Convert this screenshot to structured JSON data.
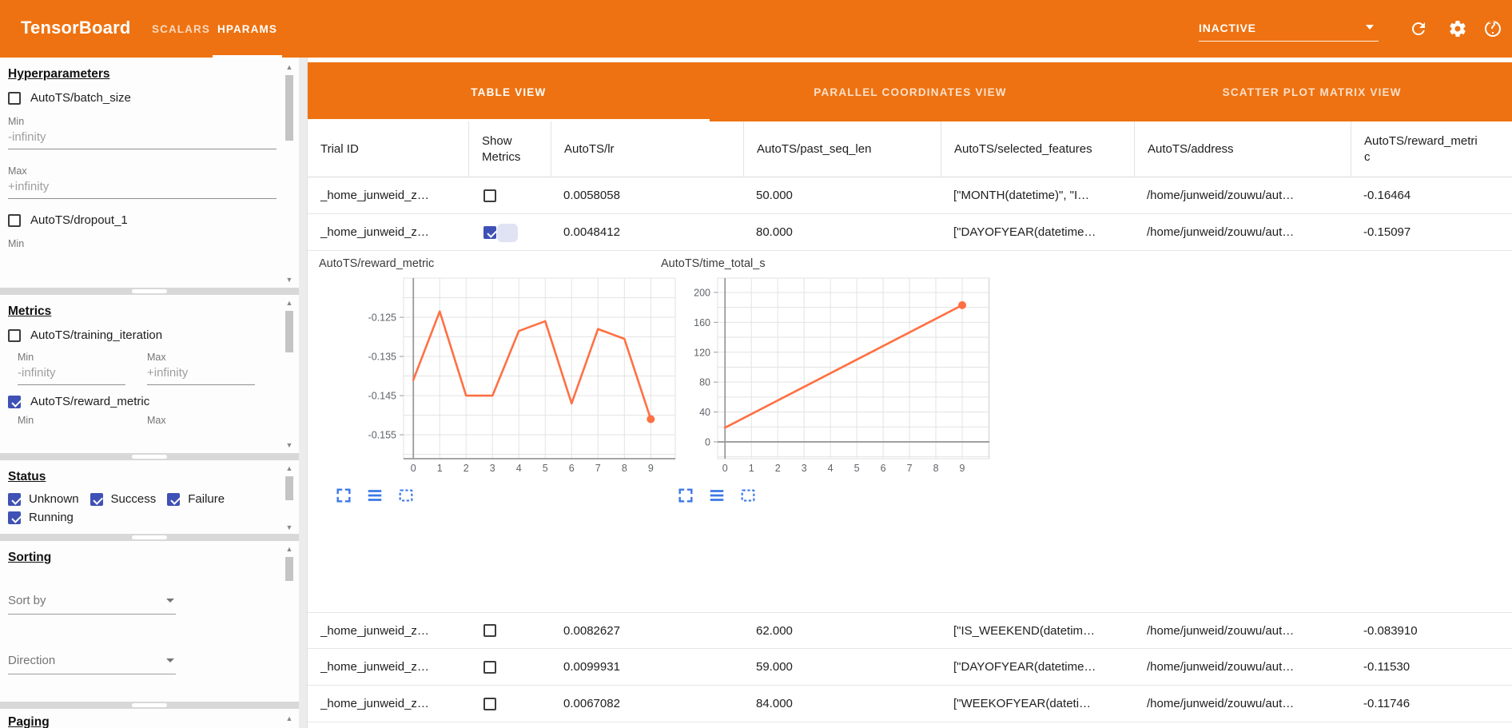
{
  "toolbar": {
    "title": "TensorBoard",
    "tabs": [
      {
        "label": "SCALARS",
        "active": false
      },
      {
        "label": "HPARAMS",
        "active": true
      }
    ],
    "run_selector": "INACTIVE",
    "accent_color": "#ee7211"
  },
  "sidebar": {
    "hyperparameters": {
      "title": "Hyperparameters",
      "item1": "AutoTS/batch_size",
      "item2": "AutoTS/dropout_1",
      "checked": [
        false,
        false
      ],
      "min_label": "Min",
      "max_label": "Max",
      "min_value": "-infinity",
      "max_value": "+infinity",
      "trailing_min_label": "Min"
    },
    "metrics": {
      "title": "Metrics",
      "item1": "AutoTS/training_iteration",
      "item2": "AutoTS/reward_metric",
      "checked": [
        false,
        true
      ],
      "min_label": "Min",
      "max_label": "Max",
      "min_value": "-infinity",
      "max_value": "+infinity",
      "trailing_min_label": "Min",
      "trailing_max_label": "Max"
    },
    "status": {
      "title": "Status",
      "options": [
        "Unknown",
        "Success",
        "Failure",
        "Running"
      ],
      "checked": [
        true,
        true,
        true,
        true
      ]
    },
    "sorting": {
      "title": "Sorting",
      "sort_by": "Sort by",
      "direction": "Direction"
    },
    "paging": {
      "title": "Paging"
    }
  },
  "main": {
    "view_tabs": [
      {
        "label": "TABLE VIEW",
        "active": true
      },
      {
        "label": "PARALLEL COORDINATES VIEW",
        "active": false
      },
      {
        "label": "SCATTER PLOT MATRIX VIEW",
        "active": false
      }
    ],
    "table": {
      "columns": [
        "Trial ID",
        "Show Metrics",
        "AutoTS/lr",
        "AutoTS/past_seq_len",
        "AutoTS/selected_features",
        "AutoTS/address",
        "AutoTS/reward_metric"
      ],
      "rows": [
        {
          "trial_id": "_home_junweid_z…",
          "show_metrics": false,
          "lr": "0.0058058",
          "past_seq_len": "50.000",
          "selected_features": "[\"MONTH(datetime)\", \"I…",
          "address": "/home/junweid/zouwu/aut…",
          "reward_metric": "-0.16464"
        },
        {
          "trial_id": "_home_junweid_z…",
          "show_metrics": true,
          "lr": "0.0048412",
          "past_seq_len": "80.000",
          "selected_features": "[\"DAYOFYEAR(datetime…",
          "address": "/home/junweid/zouwu/aut…",
          "reward_metric": "-0.15097"
        },
        {
          "trial_id": "_home_junweid_z…",
          "show_metrics": false,
          "lr": "0.0082627",
          "past_seq_len": "62.000",
          "selected_features": "[\"IS_WEEKEND(datetim…",
          "address": "/home/junweid/zouwu/aut…",
          "reward_metric": "-0.083910"
        },
        {
          "trial_id": "_home_junweid_z…",
          "show_metrics": false,
          "lr": "0.0099931",
          "past_seq_len": "59.000",
          "selected_features": "[\"DAYOFYEAR(datetime…",
          "address": "/home/junweid/zouwu/aut…",
          "reward_metric": "-0.11530"
        },
        {
          "trial_id": "_home_junweid_z…",
          "show_metrics": false,
          "lr": "0.0067082",
          "past_seq_len": "84.000",
          "selected_features": "[\"WEEKOFYEAR(dateti…",
          "address": "/home/junweid/zouwu/aut…",
          "reward_metric": "-0.11746"
        }
      ]
    }
  },
  "chart_data": [
    {
      "type": "line",
      "title": "AutoTS/reward_metric",
      "x": [
        0,
        1,
        2,
        3,
        4,
        5,
        6,
        7,
        8,
        9
      ],
      "values": [
        -0.141,
        -0.1235,
        -0.145,
        -0.145,
        -0.1285,
        -0.126,
        -0.147,
        -0.128,
        -0.1305,
        -0.151
      ],
      "xticks": [
        0,
        1,
        2,
        3,
        4,
        5,
        6,
        7,
        8,
        9
      ],
      "yticks": [
        -0.125,
        -0.135,
        -0.145,
        -0.155
      ],
      "xlim": [
        -0.37,
        9.93
      ],
      "ylim": [
        -0.1611,
        -0.115
      ],
      "xgrid_step": 1,
      "ygrid_step": 0.005,
      "x_axis_value": null,
      "grid": true,
      "legend": "none",
      "end_marker": true,
      "line_color": "#ff7043"
    },
    {
      "type": "line",
      "title": "AutoTS/time_total_s",
      "x": [
        0,
        9
      ],
      "values": [
        19,
        183
      ],
      "xticks": [
        0,
        1,
        2,
        3,
        4,
        5,
        6,
        7,
        8,
        9
      ],
      "yticks": [
        0,
        40,
        80,
        120,
        160,
        200
      ],
      "xlim": [
        -0.28,
        10.03
      ],
      "ylim": [
        -22.5,
        219.2
      ],
      "xgrid_step": 1,
      "ygrid_step": 20,
      "x_axis_value": 0,
      "grid": true,
      "legend": "none",
      "end_marker": true,
      "line_color": "#ff7043"
    }
  ]
}
